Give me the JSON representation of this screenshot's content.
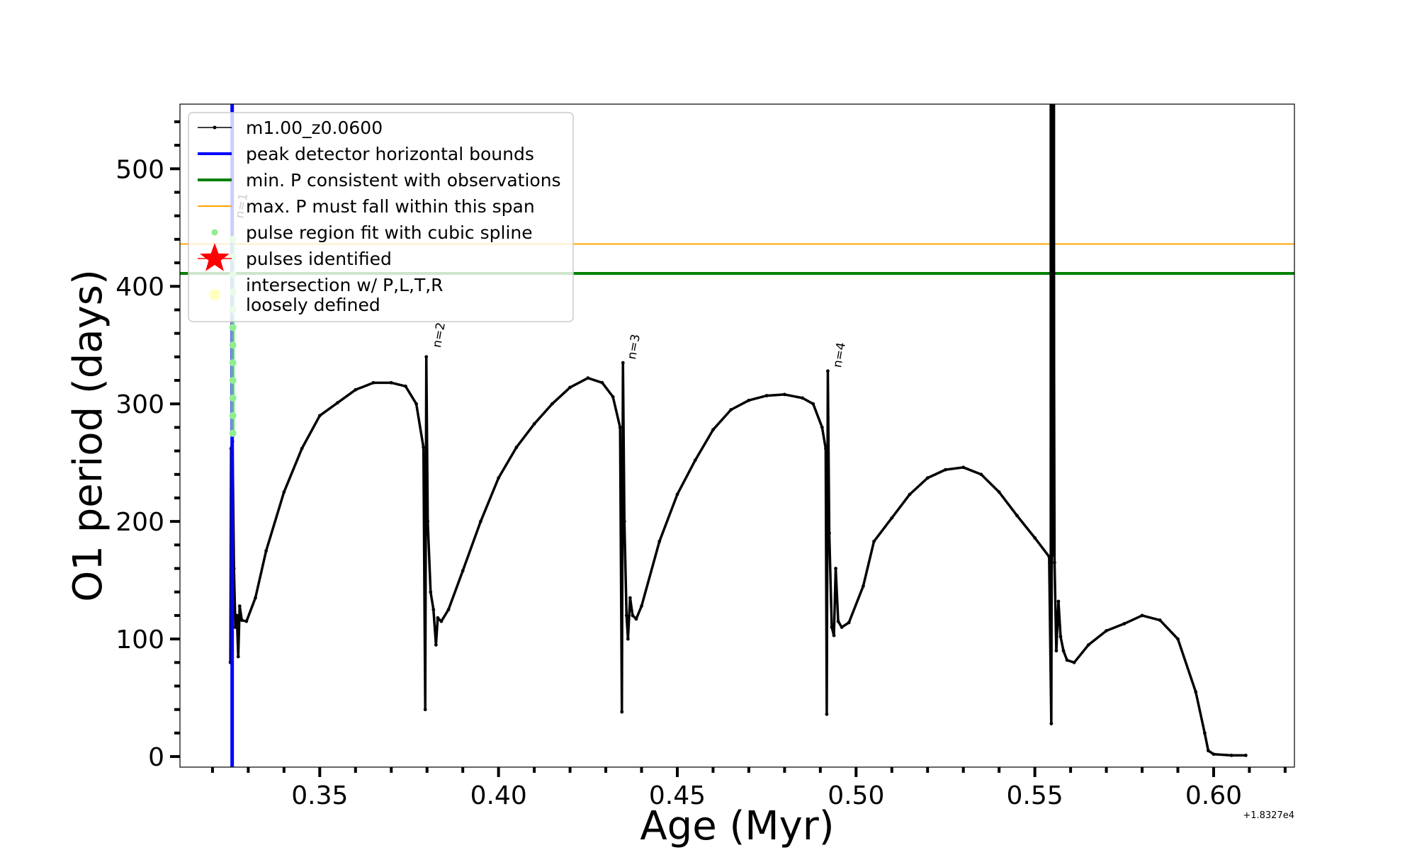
{
  "chart_data": {
    "type": "line",
    "title": "",
    "xlabel": "Age (Myr)",
    "ylabel": "O1 period (days)",
    "xlim": [
      0.3109,
      0.6226
    ],
    "ylim": [
      -9,
      555
    ],
    "x_offset_label": "+1.8327e4",
    "x_ticks": [
      0.35,
      0.4,
      0.45,
      0.5,
      0.55,
      0.6
    ],
    "x_tick_labels": [
      "0.35",
      "0.40",
      "0.45",
      "0.50",
      "0.55",
      "0.60"
    ],
    "y_ticks": [
      0,
      100,
      200,
      300,
      400,
      500
    ],
    "y_tick_labels": [
      "0",
      "100",
      "200",
      "300",
      "400",
      "500"
    ],
    "hlines": [
      {
        "name": "min. P consistent with observations",
        "y": 411,
        "color": "#008000"
      },
      {
        "name": "max. P must fall within this span",
        "y": 436,
        "color": "#ffa500"
      }
    ],
    "vlines": [
      {
        "name": "peak detector horizontal bounds",
        "x": 0.3255,
        "color": "#0000ff"
      }
    ],
    "series": [
      {
        "name": "m1.00_z0.0600",
        "color": "#000000",
        "points": [
          [
            0.325,
            80
          ],
          [
            0.3252,
            262
          ],
          [
            0.3256,
            268
          ],
          [
            0.326,
            160
          ],
          [
            0.3264,
            110
          ],
          [
            0.3268,
            120
          ],
          [
            0.3272,
            85
          ],
          [
            0.3276,
            128
          ],
          [
            0.3282,
            116
          ],
          [
            0.3295,
            115
          ],
          [
            0.332,
            135
          ],
          [
            0.335,
            175
          ],
          [
            0.34,
            225
          ],
          [
            0.345,
            262
          ],
          [
            0.35,
            290
          ],
          [
            0.355,
            301
          ],
          [
            0.36,
            312
          ],
          [
            0.365,
            318
          ],
          [
            0.37,
            318
          ],
          [
            0.374,
            315
          ],
          [
            0.377,
            300
          ],
          [
            0.379,
            263
          ],
          [
            0.3795,
            40
          ],
          [
            0.3798,
            340
          ],
          [
            0.3802,
            200
          ],
          [
            0.381,
            140
          ],
          [
            0.3818,
            125
          ],
          [
            0.3825,
            95
          ],
          [
            0.383,
            118
          ],
          [
            0.384,
            115
          ],
          [
            0.386,
            125
          ],
          [
            0.39,
            158
          ],
          [
            0.395,
            200
          ],
          [
            0.4,
            237
          ],
          [
            0.405,
            263
          ],
          [
            0.41,
            283
          ],
          [
            0.415,
            300
          ],
          [
            0.42,
            314
          ],
          [
            0.425,
            322
          ],
          [
            0.429,
            318
          ],
          [
            0.432,
            306
          ],
          [
            0.434,
            280
          ],
          [
            0.4345,
            38
          ],
          [
            0.4348,
            335
          ],
          [
            0.4352,
            200
          ],
          [
            0.4358,
            120
          ],
          [
            0.4362,
            100
          ],
          [
            0.4368,
            135
          ],
          [
            0.4375,
            120
          ],
          [
            0.4385,
            117
          ],
          [
            0.44,
            128
          ],
          [
            0.445,
            183
          ],
          [
            0.45,
            223
          ],
          [
            0.455,
            252
          ],
          [
            0.46,
            278
          ],
          [
            0.465,
            295
          ],
          [
            0.47,
            303
          ],
          [
            0.475,
            307
          ],
          [
            0.48,
            308
          ],
          [
            0.485,
            305
          ],
          [
            0.488,
            300
          ],
          [
            0.4905,
            280
          ],
          [
            0.4915,
            262
          ],
          [
            0.4918,
            36
          ],
          [
            0.4921,
            328
          ],
          [
            0.4925,
            190
          ],
          [
            0.4932,
            110
          ],
          [
            0.4938,
            103
          ],
          [
            0.4943,
            160
          ],
          [
            0.495,
            115
          ],
          [
            0.496,
            110
          ],
          [
            0.498,
            114
          ],
          [
            0.502,
            145
          ],
          [
            0.505,
            183
          ],
          [
            0.51,
            203
          ],
          [
            0.515,
            223
          ],
          [
            0.52,
            237
          ],
          [
            0.525,
            244
          ],
          [
            0.53,
            246
          ],
          [
            0.535,
            240
          ],
          [
            0.54,
            225
          ],
          [
            0.545,
            205
          ],
          [
            0.55,
            186
          ],
          [
            0.554,
            170
          ],
          [
            0.5546,
            28
          ],
          [
            0.555,
            555
          ],
          [
            0.5552,
            555
          ],
          [
            0.5555,
            165
          ],
          [
            0.556,
            90
          ],
          [
            0.5566,
            132
          ],
          [
            0.5572,
            102
          ],
          [
            0.558,
            90
          ],
          [
            0.559,
            82
          ],
          [
            0.561,
            80
          ],
          [
            0.565,
            95
          ],
          [
            0.57,
            107
          ],
          [
            0.575,
            113
          ],
          [
            0.58,
            120
          ],
          [
            0.585,
            116
          ],
          [
            0.59,
            100
          ],
          [
            0.595,
            55
          ],
          [
            0.5975,
            20
          ],
          [
            0.5985,
            5
          ],
          [
            0.6,
            2
          ],
          [
            0.605,
            1
          ],
          [
            0.609,
            1
          ]
        ]
      },
      {
        "name": "pulse region fit with cubic spline",
        "color": "#90ee90",
        "points": [
          [
            0.3257,
            440
          ],
          [
            0.3257,
            425
          ],
          [
            0.3257,
            410
          ],
          [
            0.3257,
            395
          ],
          [
            0.3257,
            380
          ],
          [
            0.3257,
            365
          ],
          [
            0.3257,
            350
          ],
          [
            0.3257,
            335
          ],
          [
            0.3257,
            320
          ],
          [
            0.3257,
            305
          ],
          [
            0.3257,
            290
          ],
          [
            0.3257,
            275
          ]
        ]
      }
    ],
    "pulse_labels": [
      {
        "x": 0.3258,
        "y": 455,
        "text": "n=1",
        "faded": true
      },
      {
        "x": 0.381,
        "y": 345,
        "text": "n=2",
        "faded": false
      },
      {
        "x": 0.4355,
        "y": 335,
        "text": "n=3",
        "faded": false
      },
      {
        "x": 0.493,
        "y": 328,
        "text": "n=4",
        "faded": false
      }
    ],
    "legend": {
      "placement": "upper-left",
      "entries": [
        {
          "label": "m1.00_z0.0600",
          "marker": "line-dot",
          "color": "#000000"
        },
        {
          "label": "peak detector horizontal bounds",
          "marker": "line",
          "color": "#0000ff"
        },
        {
          "label": "min. P consistent with observations",
          "marker": "line",
          "color": "#008000"
        },
        {
          "label": "max. P must fall within this span",
          "marker": "thin-line",
          "color": "#ffa500"
        },
        {
          "label": "pulse region fit with cubic spline",
          "marker": "dot",
          "color": "#90ee90"
        },
        {
          "label": "pulses identified",
          "marker": "star",
          "color": "#ff0000"
        },
        {
          "label_lines": [
            "intersection w/ P,L,T,R",
            "loosely defined"
          ],
          "marker": "big-dot",
          "color": "#ffffc0"
        }
      ]
    }
  }
}
